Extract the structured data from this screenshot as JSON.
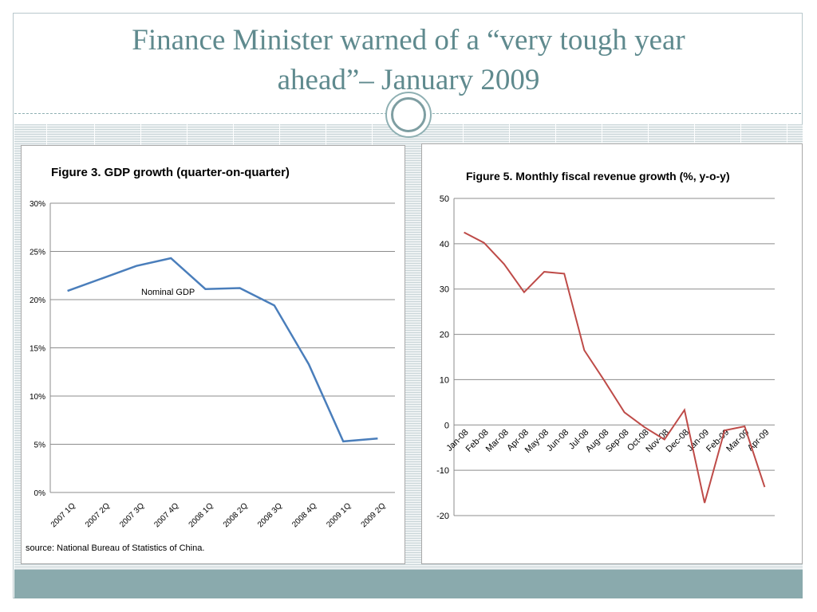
{
  "slide": {
    "title_line1": "Finance Minister warned of a “very tough year",
    "title_line2": "ahead”– January 2009",
    "accent_color": "#5f8a8e",
    "bottom_bar_color": "#8aaaad"
  },
  "chart_data": [
    {
      "type": "line",
      "title": "Figure 3.  GDP growth (quarter-on-quarter)",
      "categories": [
        "2007 1Q",
        "2007 2Q",
        "2007 3Q",
        "2007 4Q",
        "2008 1Q",
        "2008 2Q",
        "2008 3Q",
        "2008 4Q",
        "2009 1Q",
        "2009 2Q"
      ],
      "series": [
        {
          "name": "Nominal GDP",
          "color": "#4a7ebb",
          "values": [
            20.9,
            22.2,
            23.5,
            24.3,
            21.1,
            21.2,
            19.4,
            13.3,
            5.3,
            5.6
          ]
        }
      ],
      "yticks": [
        "0%",
        "5%",
        "10%",
        "15%",
        "20%",
        "25%",
        "30%"
      ],
      "ylim": [
        0,
        30
      ],
      "grid": true,
      "source": "source: National Bureau of Statistics of China."
    },
    {
      "type": "line",
      "title": "Figure 5. Monthly fiscal revenue growth (%, y-o-y)",
      "categories": [
        "Jan-08",
        "Feb-08",
        "Mar-08",
        "Apr-08",
        "May-08",
        "Jun-08",
        "Jul-08",
        "Aug-08",
        "Sep-08",
        "Oct-08",
        "Nov-08",
        "Dec-08",
        "Jan-09",
        "Feb-09",
        "Mar-09",
        "Apr-09"
      ],
      "series": [
        {
          "name": "",
          "color": "#be4b48",
          "values": [
            42.5,
            40.2,
            35.5,
            29.3,
            33.8,
            33.4,
            16.5,
            9.8,
            2.8,
            -0.5,
            -3.2,
            3.3,
            -17.2,
            -1.2,
            -0.3,
            -13.7
          ]
        }
      ],
      "yticks": [
        "-20",
        "-10",
        "0",
        "10",
        "20",
        "30",
        "40",
        "50"
      ],
      "ylim": [
        -20,
        50
      ],
      "grid": true
    }
  ]
}
